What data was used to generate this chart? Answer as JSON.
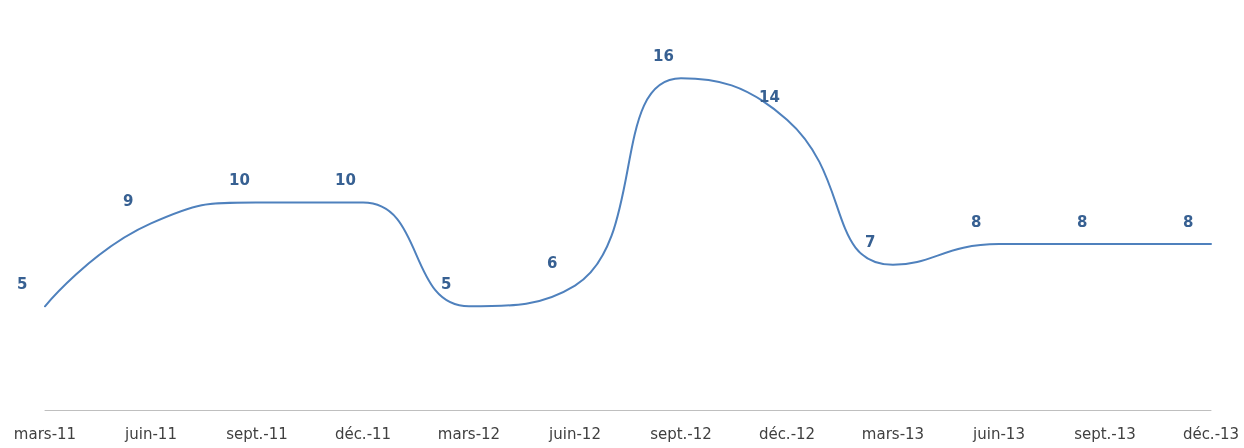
{
  "chart_data": {
    "type": "line",
    "categories": [
      "mars-11",
      "juin-11",
      "sept.-11",
      "déc.-11",
      "mars-12",
      "juin-12",
      "sept.-12",
      "déc.-12",
      "mars-13",
      "juin-13",
      "sept.-13",
      "déc.-13"
    ],
    "values": [
      5,
      9,
      10,
      10,
      5,
      6,
      16,
      14,
      7,
      8,
      8,
      8
    ],
    "color": "#4f81bd",
    "data_labels": true,
    "marker": "none"
  }
}
